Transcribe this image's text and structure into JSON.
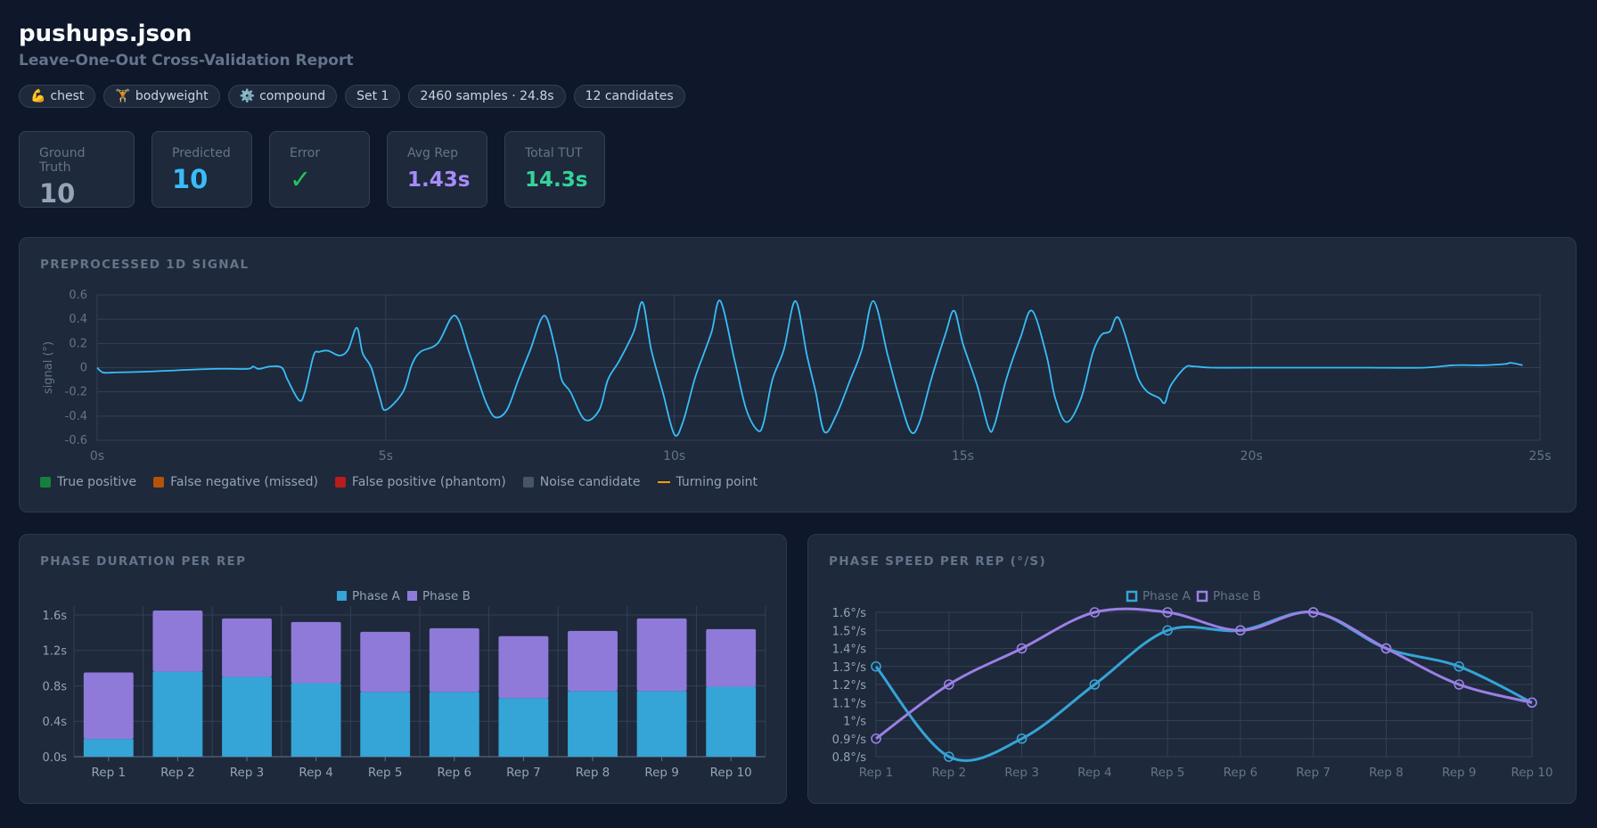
{
  "header": {
    "title": "pushups.json",
    "subtitle": "Leave-One-Out Cross-Validation Report"
  },
  "tags": [
    {
      "icon": "💪",
      "icon_name": "flexed-biceps-icon",
      "label": "chest"
    },
    {
      "icon": "🏋",
      "icon_name": "weightlifter-icon",
      "label": "bodyweight"
    },
    {
      "icon": "⚙️",
      "icon_name": "gear-icon",
      "label": "compound"
    },
    {
      "icon": "",
      "label": "Set 1"
    },
    {
      "icon": "",
      "label": "2460 samples · 24.8s"
    },
    {
      "icon": "",
      "label": "12 candidates"
    }
  ],
  "stats": {
    "ground_truth": {
      "label": "Ground Truth",
      "value": "10",
      "color": "#94a3b8"
    },
    "predicted": {
      "label": "Predicted",
      "value": "10",
      "color": "#38bdf8"
    },
    "error": {
      "label": "Error",
      "value": "✓",
      "color": "#22c55e"
    },
    "avg_rep": {
      "label": "Avg Rep",
      "value": "1.43s",
      "color": "#a78bfa"
    },
    "total_tut": {
      "label": "Total TUT",
      "value": "14.3s",
      "color": "#34d399"
    }
  },
  "signal_panel": {
    "title": "PREPROCESSED 1D SIGNAL",
    "legend": [
      {
        "label": "True positive",
        "color": "#15803d",
        "kind": "box"
      },
      {
        "label": "False negative (missed)",
        "color": "#b45309",
        "kind": "box"
      },
      {
        "label": "False positive (phantom)",
        "color": "#b91c1c",
        "kind": "box"
      },
      {
        "label": "Noise candidate",
        "color": "#475569",
        "kind": "box"
      },
      {
        "label": "Turning point",
        "color": "#f59e0b",
        "kind": "line"
      }
    ]
  },
  "duration_panel": {
    "title": "PHASE DURATION PER REP"
  },
  "speed_panel": {
    "title": "PHASE SPEED PER REP (°/S)"
  },
  "chart_data": [
    {
      "type": "line",
      "ylabel": "signal (°)",
      "xlim": [
        0,
        25
      ],
      "ylim": [
        -0.6,
        0.6
      ],
      "x_ticks": [
        "0s",
        "5s",
        "10s",
        "15s",
        "20s",
        "25s"
      ],
      "y_ticks": [
        "0.6",
        "0.4",
        "0.2",
        "0",
        "-0.2",
        "-0.4",
        "-0.6"
      ],
      "color": "#38bdf8",
      "series": [
        {
          "x": [
            0,
            0.1,
            0.3,
            1.0,
            2.0,
            2.6,
            2.7,
            2.8,
            3.0,
            3.2,
            3.3,
            3.5,
            3.6,
            3.75,
            3.85,
            4.0,
            4.2,
            4.35,
            4.5,
            4.6,
            4.75,
            4.9,
            5.0,
            5.3,
            5.45,
            5.6,
            5.9,
            6.2,
            6.45,
            6.6,
            6.75,
            6.9,
            7.1,
            7.3,
            7.5,
            7.75,
            7.95,
            8.05,
            8.2,
            8.45,
            8.7,
            8.85,
            9.05,
            9.3,
            9.45,
            9.6,
            9.8,
            10.0,
            10.15,
            10.35,
            10.5,
            10.65,
            10.8,
            11.05,
            11.25,
            11.45,
            11.55,
            11.7,
            11.9,
            12.1,
            12.3,
            12.45,
            12.6,
            12.8,
            13.05,
            13.25,
            13.45,
            13.7,
            13.9,
            14.1,
            14.25,
            14.45,
            14.7,
            14.85,
            15.0,
            15.25,
            15.45,
            15.55,
            15.75,
            16.0,
            16.2,
            16.45,
            16.6,
            16.8,
            17.05,
            17.25,
            17.4,
            17.55,
            17.7,
            17.95,
            18.05,
            18.2,
            18.4,
            18.5,
            18.6,
            18.85,
            19.0,
            19.3,
            20.0,
            21.0,
            22.0,
            23.0,
            23.5,
            24.0,
            24.4,
            24.5,
            24.7
          ],
          "y": [
            0,
            -0.04,
            -0.04,
            -0.03,
            -0.01,
            -0.01,
            0.01,
            -0.01,
            0.01,
            0.0,
            -0.1,
            -0.27,
            -0.2,
            0.1,
            0.13,
            0.14,
            0.1,
            0.15,
            0.33,
            0.12,
            0.0,
            -0.25,
            -0.35,
            -0.2,
            0.02,
            0.13,
            0.2,
            0.43,
            0.12,
            -0.1,
            -0.3,
            -0.41,
            -0.35,
            -0.1,
            0.14,
            0.43,
            0.13,
            -0.1,
            -0.2,
            -0.43,
            -0.35,
            -0.1,
            0.06,
            0.3,
            0.54,
            0.15,
            -0.2,
            -0.55,
            -0.45,
            -0.1,
            0.1,
            0.3,
            0.55,
            0.05,
            -0.35,
            -0.52,
            -0.45,
            -0.1,
            0.15,
            0.55,
            0.1,
            -0.2,
            -0.53,
            -0.4,
            -0.1,
            0.15,
            0.55,
            0.1,
            -0.25,
            -0.53,
            -0.45,
            -0.1,
            0.28,
            0.47,
            0.2,
            -0.15,
            -0.5,
            -0.47,
            -0.1,
            0.25,
            0.47,
            0.1,
            -0.25,
            -0.45,
            -0.25,
            0.12,
            0.27,
            0.3,
            0.41,
            0.05,
            -0.1,
            -0.2,
            -0.25,
            -0.29,
            -0.15,
            0.0,
            0.01,
            0.0,
            0.0,
            0.0,
            0.0,
            0.0,
            0.02,
            0.02,
            0.03,
            0.04,
            0.02
          ]
        }
      ]
    },
    {
      "type": "bar",
      "stacked": true,
      "categories": [
        "Rep 1",
        "Rep 2",
        "Rep 3",
        "Rep 4",
        "Rep 5",
        "Rep 6",
        "Rep 7",
        "Rep 8",
        "Rep 9",
        "Rep 10"
      ],
      "ylim": [
        0,
        1.7
      ],
      "y_ticks": [
        "0.0s",
        "0.4s",
        "0.8s",
        "1.2s",
        "1.6s"
      ],
      "series": [
        {
          "name": "Phase A",
          "color": "#35a4d6",
          "values": [
            0.2,
            0.96,
            0.9,
            0.83,
            0.73,
            0.73,
            0.66,
            0.74,
            0.74,
            0.79
          ]
        },
        {
          "name": "Phase B",
          "color": "#8f7ad9",
          "values": [
            0.75,
            0.69,
            0.66,
            0.69,
            0.68,
            0.72,
            0.7,
            0.68,
            0.82,
            0.65
          ]
        }
      ]
    },
    {
      "type": "line",
      "categories": [
        "Rep 1",
        "Rep 2",
        "Rep 3",
        "Rep 4",
        "Rep 5",
        "Rep 6",
        "Rep 7",
        "Rep 8",
        "Rep 9",
        "Rep 10"
      ],
      "ylim": [
        0.8,
        1.6
      ],
      "y_ticks": [
        "1.6°/s",
        "1.5°/s",
        "1.4°/s",
        "1.3°/s",
        "1.2°/s",
        "1.1°/s",
        "1°/s",
        "0.9°/s",
        "0.8°/s"
      ],
      "series": [
        {
          "name": "Phase A",
          "color": "#35a4d6",
          "values": [
            1.3,
            0.8,
            0.9,
            1.2,
            1.5,
            1.5,
            1.6,
            1.4,
            1.3,
            1.1
          ]
        },
        {
          "name": "Phase B",
          "color": "#9b7fe6",
          "values": [
            0.9,
            1.2,
            1.4,
            1.6,
            1.6,
            1.5,
            1.6,
            1.4,
            1.2,
            1.1
          ]
        }
      ]
    }
  ]
}
